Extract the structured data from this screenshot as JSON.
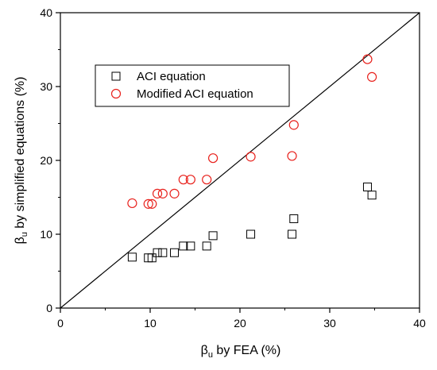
{
  "chart_data": {
    "type": "scatter",
    "xlabel": {
      "symbol": "β",
      "sub": "u",
      "text": " by FEA (%)"
    },
    "ylabel": {
      "symbol": "β",
      "sub": "u",
      "text": " by simplified equations (%)"
    },
    "xlim": [
      0,
      40
    ],
    "ylim": [
      0,
      40
    ],
    "xticks": [
      "0",
      "10",
      "20",
      "30",
      "40"
    ],
    "yticks": [
      "0",
      "10",
      "20",
      "30",
      "40"
    ],
    "grid": false,
    "legend_position": "top-left",
    "reference_line": {
      "from": [
        0,
        0
      ],
      "to": [
        40,
        40
      ]
    },
    "series": [
      {
        "name": "ACI equation",
        "marker": "square",
        "color": "#000000",
        "points": [
          [
            8.0,
            6.9
          ],
          [
            9.8,
            6.8
          ],
          [
            10.2,
            6.8
          ],
          [
            10.8,
            7.5
          ],
          [
            11.4,
            7.5
          ],
          [
            12.7,
            7.5
          ],
          [
            13.7,
            8.4
          ],
          [
            14.5,
            8.4
          ],
          [
            16.3,
            8.4
          ],
          [
            17.0,
            9.8
          ],
          [
            21.2,
            10.0
          ],
          [
            25.8,
            10.0
          ],
          [
            26.0,
            12.1
          ],
          [
            34.2,
            16.4
          ],
          [
            34.7,
            15.3
          ]
        ]
      },
      {
        "name": "Modified ACI equation",
        "marker": "circle",
        "color": "#e8201b",
        "points": [
          [
            8.0,
            14.2
          ],
          [
            9.8,
            14.1
          ],
          [
            10.2,
            14.1
          ],
          [
            10.8,
            15.5
          ],
          [
            11.4,
            15.5
          ],
          [
            12.7,
            15.5
          ],
          [
            13.7,
            17.4
          ],
          [
            14.5,
            17.4
          ],
          [
            16.3,
            17.4
          ],
          [
            17.0,
            20.3
          ],
          [
            21.2,
            20.5
          ],
          [
            25.8,
            20.6
          ],
          [
            26.0,
            24.8
          ],
          [
            34.2,
            33.7
          ],
          [
            34.7,
            31.3
          ]
        ]
      }
    ]
  }
}
